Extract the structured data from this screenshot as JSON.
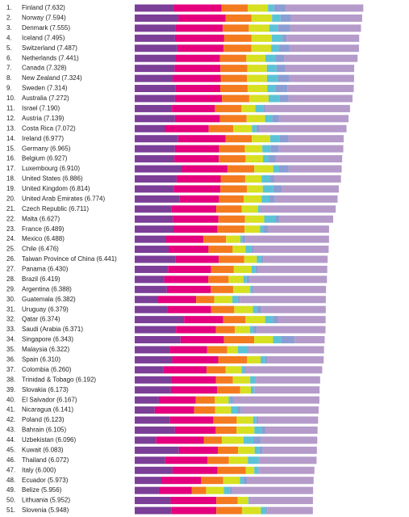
{
  "chart_data": {
    "type": "stacked-bar-horizontal",
    "ranks": [
      "1.",
      "2.",
      "3.",
      "4.",
      "5.",
      "6.",
      "7.",
      "8.",
      "9.",
      "10.",
      "11.",
      "12.",
      "13.",
      "14.",
      "15.",
      "16.",
      "17.",
      "18.",
      "19.",
      "20.",
      "21.",
      "22.",
      "23.",
      "24.",
      "25.",
      "26.",
      "27.",
      "28.",
      "29.",
      "30.",
      "31.",
      "32.",
      "33.",
      "34.",
      "35.",
      "36.",
      "37.",
      "38.",
      "39.",
      "40.",
      "41.",
      "42.",
      "43.",
      "44.",
      "45.",
      "46.",
      "47.",
      "48.",
      "49.",
      "50.",
      "51."
    ],
    "categories": [
      "Finland (7.632)",
      "Norway (7.594)",
      "Denmark (7.555)",
      "Iceland (7.495)",
      "Switzerland (7.487)",
      "Netherlands (7.441)",
      "Canada (7.328)",
      "New Zealand (7.324)",
      "Sweden (7.314)",
      "Australia (7.272)",
      "Israel (7.190)",
      "Austria (7.139)",
      "Costa Rica (7.072)",
      "Ireland (6.977)",
      "Germany (6.965)",
      "Belgium (6.927)",
      "Luxembourg (6.910)",
      "United States (6.886)",
      "United Kingdom (6.814)",
      "United Arab Emirates (6.774)",
      "Czech Republic (6.711)",
      "Malta (6.627)",
      "France (6.489)",
      "Mexico (6.488)",
      "Chile (6.476)",
      "Taiwan Province of China (6.441)",
      "Panama (6.430)",
      "Brazil (6.419)",
      "Argentina (6.388)",
      "Guatemala (6.382)",
      "Uruguay (6.379)",
      "Qatar (6.374)",
      "Saudi (Arabia (6.371)",
      "Singapore (6.343)",
      "Malaysia (6.322)",
      "Spain (6.310)",
      "Colombia (6.260)",
      "Trinidad & Tobago (6.192)",
      "Slovakia (6.173)",
      "El Salvador (6.167)",
      "Nicaragua (6.141)",
      "Poland (6.123)",
      "Bahrain (6.105)",
      "Uzbekistan (6.096)",
      "Kuwait (6.083)",
      "Thailand (6.072)",
      "Italy (6.000)",
      "Ecuador (5.973)",
      "Belize (5.956)",
      "Lithuania (5.952)",
      "Slovenia (5.948)"
    ],
    "xlim": [
      0,
      8
    ],
    "series": [
      {
        "color": "#7b3f98",
        "values": [
          1.305,
          1.456,
          1.351,
          1.343,
          1.42,
          1.361,
          1.33,
          1.268,
          1.355,
          1.34,
          1.244,
          1.341,
          1.01,
          1.448,
          1.34,
          1.324,
          1.576,
          1.398,
          1.301,
          1.503,
          1.233,
          1.27,
          1.293,
          1.038,
          1.131,
          1.365,
          1.112,
          0.986,
          1.073,
          0.781,
          1.093,
          1.649,
          1.379,
          1.529,
          1.161,
          1.251,
          0.96,
          1.223,
          1.21,
          0.806,
          0.668,
          1.176,
          1.338,
          0.719,
          1.474,
          1.016,
          1.264,
          0.889,
          0.807,
          1.197,
          1.219
        ]
      },
      {
        "color": "#e5007d",
        "values": [
          1.592,
          1.582,
          1.59,
          1.644,
          1.549,
          1.488,
          1.532,
          1.601,
          1.501,
          1.573,
          1.433,
          1.504,
          1.459,
          1.583,
          1.474,
          1.483,
          1.52,
          1.471,
          1.559,
          1.31,
          1.489,
          1.525,
          1.466,
          1.252,
          1.331,
          1.436,
          1.438,
          1.474,
          1.468,
          1.268,
          1.459,
          1.303,
          1.331,
          1.451,
          1.258,
          1.538,
          1.439,
          1.492,
          1.537,
          1.231,
          1.319,
          1.448,
          1.366,
          1.584,
          1.301,
          1.417,
          1.501,
          1.33,
          1.101,
          1.527,
          1.506
        ]
      },
      {
        "color": "#f47a20",
        "values": [
          0.874,
          0.861,
          0.868,
          0.914,
          0.927,
          0.878,
          0.896,
          0.876,
          0.913,
          0.91,
          0.888,
          0.891,
          0.817,
          0.876,
          0.861,
          0.894,
          0.896,
          0.819,
          0.883,
          0.825,
          0.854,
          0.884,
          0.908,
          0.761,
          0.808,
          0.857,
          0.759,
          0.675,
          0.744,
          0.608,
          0.771,
          0.748,
          0.633,
          1.008,
          0.669,
          0.965,
          0.635,
          0.564,
          0.776,
          0.639,
          0.7,
          0.781,
          0.698,
          0.605,
          0.675,
          0.707,
          0.946,
          0.736,
          0.474,
          0.716,
          0.856
        ]
      },
      {
        "color": "#d7e021",
        "values": [
          0.681,
          0.686,
          0.683,
          0.677,
          0.66,
          0.638,
          0.653,
          0.669,
          0.659,
          0.647,
          0.464,
          0.617,
          0.632,
          0.614,
          0.586,
          0.583,
          0.632,
          0.547,
          0.533,
          0.598,
          0.543,
          0.645,
          0.52,
          0.479,
          0.431,
          0.418,
          0.597,
          0.493,
          0.57,
          0.604,
          0.625,
          0.654,
          0.509,
          0.631,
          0.356,
          0.449,
          0.531,
          0.575,
          0.354,
          0.461,
          0.527,
          0.546,
          0.594,
          0.724,
          0.554,
          0.637,
          0.281,
          0.556,
          0.593,
          0.35,
          0.633
        ]
      },
      {
        "color": "#5cc3d6",
        "values": [
          0.202,
          0.286,
          0.284,
          0.353,
          0.256,
          0.333,
          0.321,
          0.365,
          0.285,
          0.361,
          0.262,
          0.242,
          0.143,
          0.307,
          0.273,
          0.188,
          0.196,
          0.291,
          0.354,
          0.262,
          0.064,
          0.376,
          0.098,
          0.069,
          0.197,
          0.151,
          0.125,
          0.11,
          0.062,
          0.179,
          0.13,
          0.256,
          0.098,
          0.261,
          0.311,
          0.142,
          0.099,
          0.171,
          0.118,
          0.065,
          0.208,
          0.108,
          0.243,
          0.328,
          0.167,
          0.364,
          0.137,
          0.114,
          0.183,
          0.026,
          0.16
        ]
      },
      {
        "color": "#8b9dd3",
        "values": [
          0.393,
          0.34,
          0.408,
          0.138,
          0.357,
          0.295,
          0.291,
          0.389,
          0.383,
          0.302,
          0.082,
          0.224,
          0.101,
          0.306,
          0.28,
          0.24,
          0.321,
          0.133,
          0.272,
          0.182,
          0.034,
          0.142,
          0.176,
          0.095,
          0.061,
          0.078,
          0.063,
          0.088,
          0.054,
          0.071,
          0.155,
          0.171,
          0.127,
          0.457,
          0.059,
          0.074,
          0.039,
          0.019,
          0.014,
          0.082,
          0.128,
          0.064,
          0.123,
          0.259,
          0.106,
          0.029,
          0.028,
          0.12,
          0.089,
          0.006,
          0.051
        ]
      },
      {
        "color": "#b59bca",
        "values": [
          2.585,
          2.383,
          2.371,
          2.426,
          2.318,
          2.448,
          2.305,
          2.156,
          2.218,
          2.139,
          2.817,
          2.32,
          2.91,
          1.843,
          2.151,
          2.215,
          1.769,
          2.227,
          1.912,
          2.094,
          2.494,
          1.785,
          2.028,
          2.794,
          2.517,
          2.136,
          2.336,
          2.593,
          2.417,
          2.871,
          2.146,
          1.593,
          2.294,
          1.006,
          2.508,
          1.891,
          2.557,
          2.148,
          2.164,
          2.883,
          2.591,
          2.0,
          1.743,
          1.877,
          1.806,
          1.902,
          1.843,
          2.228,
          2.709,
          2.13,
          1.523
        ]
      }
    ]
  }
}
